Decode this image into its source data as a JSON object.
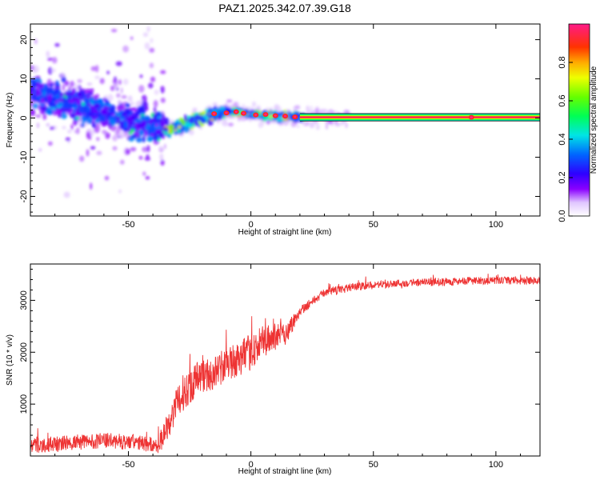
{
  "figure": {
    "title": "PAZ1.2025.342.07.39.G18"
  },
  "chart_data": [
    {
      "type": "heatmap",
      "xlabel": "Height of straight line (km)",
      "ylabel": "Frequency (Hz)",
      "xlim": [
        -90,
        118
      ],
      "ylim": [
        -25,
        24
      ],
      "xticks": [
        -50,
        0,
        50,
        100
      ],
      "yticks": [
        -20,
        -10,
        0,
        10,
        20
      ],
      "colorbar": {
        "label": "Normalized spectral amplitude",
        "range": [
          0,
          1
        ],
        "ticks": [
          0.0,
          0.2,
          0.4,
          0.6,
          0.8
        ],
        "tick_labels": [
          "0.0",
          "0.2",
          "0.4",
          "0.6",
          "0.8"
        ]
      },
      "ridge": {
        "x": [
          -90,
          -75,
          -60,
          -50,
          -40,
          -35,
          -30,
          -20,
          -15,
          -8,
          0,
          10,
          20,
          50,
          90,
          118
        ],
        "freq": [
          7,
          4,
          1.5,
          -0.5,
          -1.5,
          -3,
          -2.5,
          0,
          1,
          1.8,
          1,
          0.5,
          0.3,
          0.2,
          0.2,
          0.2
        ]
      },
      "strong_band": {
        "x_start": 20,
        "x_end": 118,
        "freq": 0.2,
        "amplitude": 1.0
      }
    },
    {
      "type": "line",
      "xlabel": "Height of straight line (km)",
      "ylabel": "SNR (10 * v/v)",
      "xlim": [
        -90,
        118
      ],
      "ylim": [
        0,
        3700
      ],
      "xticks": [
        -50,
        0,
        50,
        100
      ],
      "yticks": [
        1000,
        2000,
        3000
      ],
      "series": [
        {
          "name": "SNR",
          "color": "#ee3333",
          "x": [
            -90,
            -75,
            -60,
            -45,
            -38,
            -33,
            -28,
            -22,
            -15,
            -8,
            0,
            5,
            10,
            15,
            20,
            30,
            40,
            60,
            80,
            100,
            118
          ],
          "y": [
            200,
            250,
            300,
            250,
            200,
            700,
            1200,
            1500,
            1600,
            1800,
            2000,
            2200,
            2300,
            2400,
            2800,
            3150,
            3250,
            3330,
            3360,
            3380,
            3380
          ],
          "noise_amplitude": [
            300,
            300,
            300,
            300,
            300,
            600,
            700,
            700,
            650,
            650,
            700,
            650,
            550,
            450,
            200,
            150,
            150,
            150,
            150,
            150,
            150
          ]
        }
      ]
    }
  ]
}
